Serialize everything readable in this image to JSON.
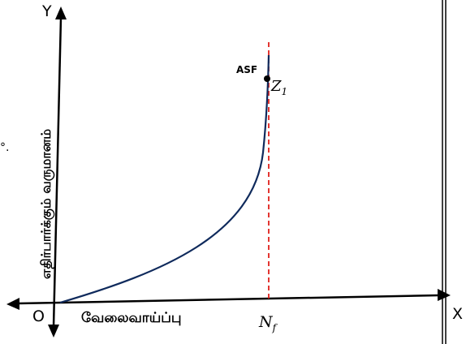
{
  "axes": {
    "y_letter": "Y",
    "x_letter": "X",
    "origin_letter": "O",
    "y_title": "எதிர்பார்க்கும் வருமானம்",
    "x_title": "வேலைவாய்ப்பு"
  },
  "point": {
    "curve_end_label": "ASF",
    "z_label": "Z",
    "z_subscript": "1"
  },
  "marker": {
    "n_label": "N",
    "n_subscript": "f"
  },
  "stray_mark": "°."
}
